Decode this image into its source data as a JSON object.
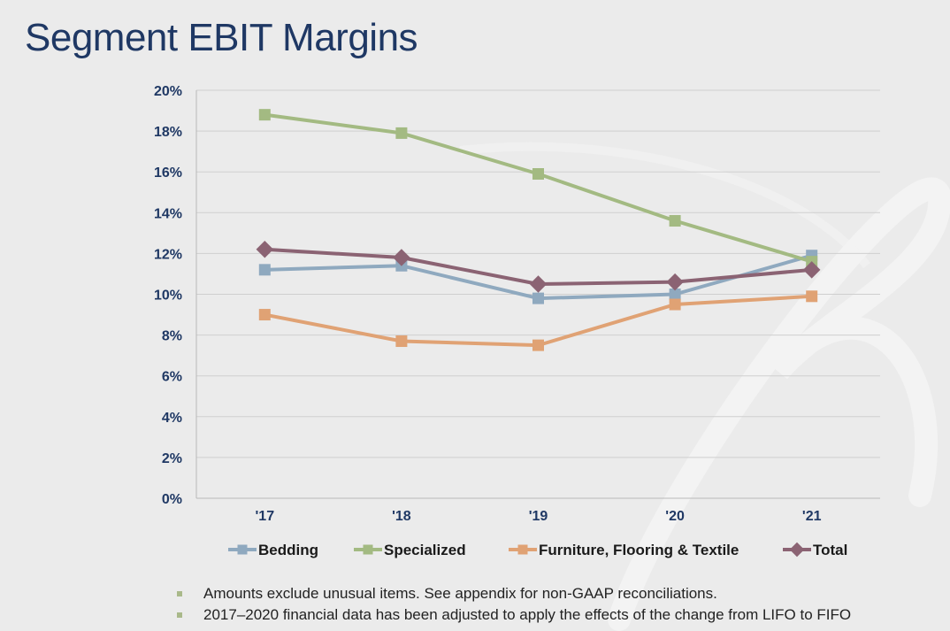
{
  "title": "Segment EBIT Margins",
  "chart_data": {
    "type": "line",
    "categories": [
      "'17",
      "'18",
      "'19",
      "'20",
      "'21"
    ],
    "yticks": [
      "0%",
      "2%",
      "4%",
      "6%",
      "8%",
      "10%",
      "12%",
      "14%",
      "16%",
      "18%",
      "20%"
    ],
    "ylim": [
      0,
      20
    ],
    "grid": true,
    "legend_position": "bottom",
    "series": [
      {
        "name": "Bedding",
        "color": "#8fa9bf",
        "marker": "square",
        "values": [
          11.2,
          11.4,
          9.8,
          10.0,
          11.9
        ]
      },
      {
        "name": "Specialized",
        "color": "#a3ba82",
        "marker": "square",
        "values": [
          18.8,
          17.9,
          15.9,
          13.6,
          11.6
        ]
      },
      {
        "name": "Furniture, Flooring & Textile",
        "color": "#e0a274",
        "marker": "square",
        "values": [
          9.0,
          7.7,
          7.5,
          9.5,
          9.9
        ]
      },
      {
        "name": "Total",
        "color": "#8b6373",
        "marker": "diamond",
        "values": [
          12.2,
          11.8,
          10.5,
          10.6,
          11.2
        ]
      }
    ]
  },
  "notes": [
    "Amounts exclude unusual items. See appendix for non-GAAP reconciliations.",
    "2017–2020 financial data has been adjusted to apply the effects of the change from LIFO to FIFO"
  ]
}
